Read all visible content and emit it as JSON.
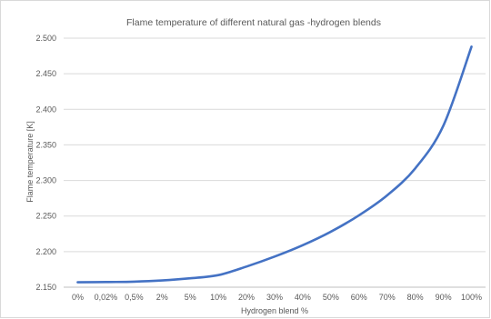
{
  "chart_data": {
    "type": "line",
    "title": "Flame temperature of different natural gas -hydrogen blends",
    "xlabel": "Hydrogen blend %",
    "ylabel": "Flame temperature [K]",
    "categories": [
      "0%",
      "0,02%",
      "0,5%",
      "2%",
      "5%",
      "10%",
      "20%",
      "30%",
      "40%",
      "50%",
      "60%",
      "70%",
      "80%",
      "90%",
      "100%"
    ],
    "series": [
      {
        "values": [
          2157,
          2157.2,
          2157.8,
          2159.5,
          2162.5,
          2167,
          2179,
          2193,
          2209,
          2228,
          2251,
          2279,
          2317,
          2377,
          2488
        ],
        "color": "#4472c4"
      }
    ],
    "ylim": [
      2150,
      2500
    ],
    "yticks": [
      2150,
      2200,
      2250,
      2300,
      2350,
      2400,
      2450,
      2500
    ],
    "ytick_labels": [
      "2.150",
      "2.200",
      "2.250",
      "2.300",
      "2.350",
      "2.400",
      "2.450",
      "2.500"
    ],
    "grid": true,
    "legend": "none"
  }
}
